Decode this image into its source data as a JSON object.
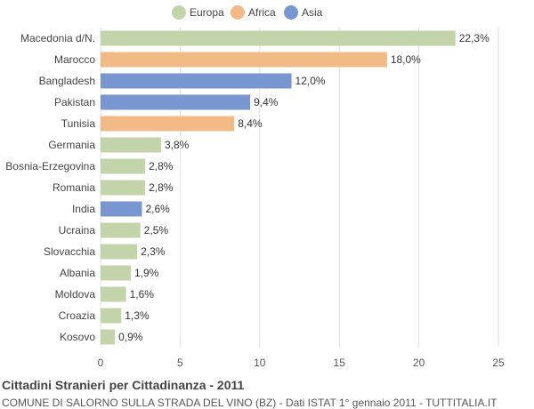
{
  "chart_data": {
    "type": "bar",
    "orientation": "horizontal",
    "title": "Cittadini Stranieri per Cittadinanza - 2011",
    "subtitle": "COMUNE DI SALORNO SULLA STRADA DEL VINO (BZ) - Dati ISTAT 1° gennaio 2011 - TUTTITALIA.IT",
    "xlabel": "",
    "ylabel": "",
    "xlim": [
      0,
      25
    ],
    "xticks": [
      0,
      5,
      10,
      15,
      20,
      25
    ],
    "grid": true,
    "legend_position": "top-center",
    "legend": [
      {
        "name": "Europa",
        "color": "#c3d4ab"
      },
      {
        "name": "Africa",
        "color": "#f2ba86"
      },
      {
        "name": "Asia",
        "color": "#7896d0"
      }
    ],
    "categories": [
      "Macedonia d/N.",
      "Marocco",
      "Bangladesh",
      "Pakistan",
      "Tunisia",
      "Germania",
      "Bosnia-Erzegovina",
      "Romania",
      "India",
      "Ucraina",
      "Slovacchia",
      "Albania",
      "Moldova",
      "Croazia",
      "Kosovo"
    ],
    "values": [
      22.3,
      18.0,
      12.0,
      9.4,
      8.4,
      3.8,
      2.8,
      2.8,
      2.6,
      2.5,
      2.3,
      1.9,
      1.6,
      1.3,
      0.9
    ],
    "labels": [
      "22,3%",
      "18,0%",
      "12,0%",
      "9,4%",
      "8,4%",
      "3,8%",
      "2,8%",
      "2,8%",
      "2,6%",
      "2,5%",
      "2,3%",
      "1,9%",
      "1,6%",
      "1,3%",
      "0,9%"
    ],
    "groups": [
      "Europa",
      "Africa",
      "Asia",
      "Asia",
      "Africa",
      "Europa",
      "Europa",
      "Europa",
      "Asia",
      "Europa",
      "Europa",
      "Europa",
      "Europa",
      "Europa",
      "Europa"
    ]
  }
}
